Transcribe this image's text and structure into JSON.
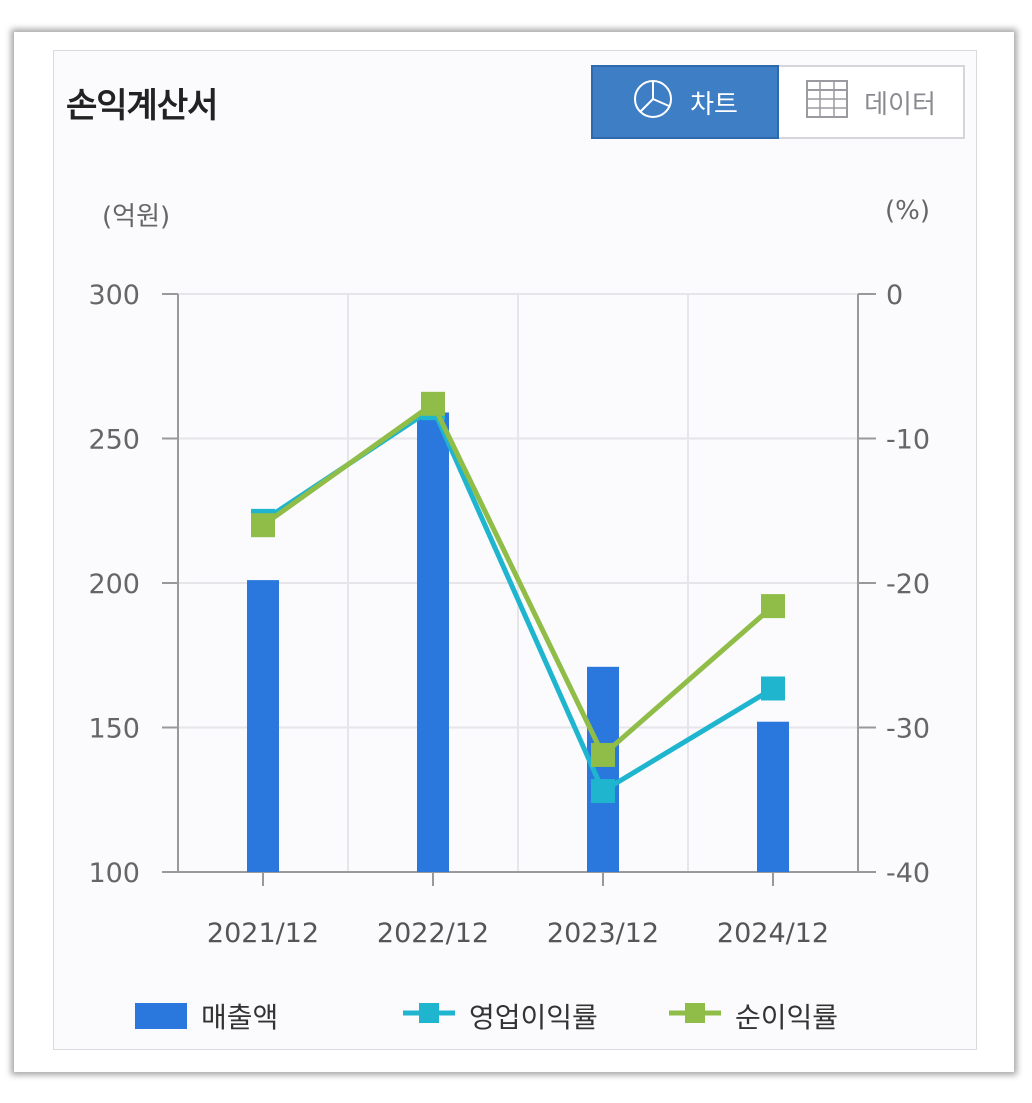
{
  "title": "손익계산서",
  "toggle": {
    "chart_label": "차트",
    "data_label": "데이터",
    "chart_icon": "pie-chart-icon",
    "data_icon": "table-grid-icon",
    "active": "chart"
  },
  "units": {
    "left": "(억원)",
    "right": "(%)"
  },
  "colors": {
    "bar": "#2a78de",
    "operating": "#1fb5cf",
    "net": "#8fbd48",
    "active_button": "#3d7ec4"
  },
  "chart_data": {
    "type": "bar",
    "categories": [
      "2021/12",
      "2022/12",
      "2023/12",
      "2024/12"
    ],
    "y_left": {
      "label": "(억원)",
      "range": [
        100,
        300
      ],
      "ticks": [
        "300",
        "250",
        "200",
        "150",
        "100"
      ],
      "tick_values": [
        300,
        250,
        200,
        150,
        100
      ]
    },
    "y_right": {
      "label": "(%)",
      "range": [
        -40,
        0
      ],
      "ticks": [
        "0",
        "-10",
        "-20",
        "-30",
        "-40"
      ],
      "tick_values": [
        0,
        -10,
        -20,
        -30,
        -40
      ]
    },
    "grid": true,
    "legend_position": "bottom",
    "series": [
      {
        "name": "매출액",
        "type": "bar",
        "axis": "left",
        "values": [
          201,
          259,
          171,
          152
        ]
      },
      {
        "name": "영업이익률",
        "type": "line",
        "axis": "right",
        "values": [
          -15.7,
          -7.9,
          -34.4,
          -27.3
        ]
      },
      {
        "name": "순이익률",
        "type": "line",
        "axis": "right",
        "values": [
          -16.0,
          -7.6,
          -31.9,
          -21.6
        ]
      }
    ]
  }
}
